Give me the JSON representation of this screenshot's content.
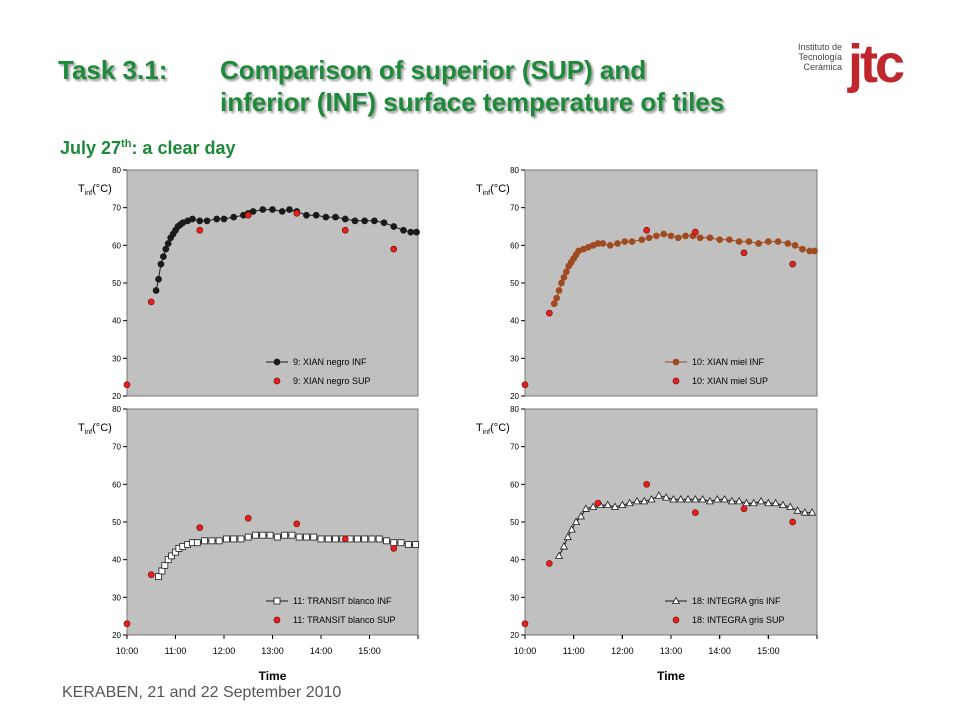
{
  "header": {
    "task_label": "Task 3.1:",
    "title_line1": "Comparison of superior (SUP) and",
    "title_line2": "inferior (INF) surface temperature of tiles",
    "subtitle_prefix": "July 27",
    "subtitle_sup": "th",
    "subtitle_suffix": ": a clear day"
  },
  "logo": {
    "line1": "Instituto de",
    "line2": "Tecnología Cerámica",
    "mark": "jtc"
  },
  "footer": {
    "text": "KERABEN, 21 and 22 September 2010"
  },
  "colors": {
    "title": "#1d8a3a",
    "plot_bg": "#c0c0c0",
    "sup_marker": "#e8201c",
    "logo": "#c0272d"
  },
  "chart_data": [
    {
      "type": "scatter",
      "ylabel": "T",
      "ylabel_sub": "inf",
      "ylabel_unit": "(°C)",
      "xlabel": "",
      "ylim": [
        20,
        80
      ],
      "yticks": [
        "20",
        "30",
        "40",
        "50",
        "60",
        "70",
        "80"
      ],
      "xticks": [],
      "marker": "circle",
      "inf_fill": "#1a1a1a",
      "inf_line": "#1a1a1a",
      "series": [
        {
          "name": "9: XIAN negro INF",
          "kind": "inf",
          "x": [
            10.6,
            10.65,
            10.7,
            10.75,
            10.8,
            10.85,
            10.9,
            10.95,
            11.0,
            11.05,
            11.1,
            11.15,
            11.25,
            11.35,
            11.5,
            11.65,
            11.85,
            12.0,
            12.2,
            12.4,
            12.5,
            12.6,
            12.8,
            13.0,
            13.2,
            13.35,
            13.5,
            13.7,
            13.9,
            14.1,
            14.3,
            14.5,
            14.7,
            14.9,
            15.1,
            15.3,
            15.5,
            15.7,
            15.85,
            15.97
          ],
          "y": [
            48,
            51,
            55,
            57,
            59,
            60.5,
            62,
            63,
            64,
            65,
            65.5,
            66,
            66.5,
            67,
            66.5,
            66.5,
            67,
            67,
            67.5,
            68,
            68.5,
            69,
            69.5,
            69.5,
            69,
            69.5,
            69,
            68,
            68,
            67.5,
            67.5,
            67,
            66.5,
            66.5,
            66.5,
            66,
            65,
            64,
            63.5,
            63.5
          ]
        },
        {
          "name": "9: XIAN negro SUP",
          "kind": "sup",
          "x": [
            10.0,
            10.5,
            11.5,
            12.5,
            13.5,
            14.5,
            15.5
          ],
          "y": [
            23,
            45,
            64,
            68,
            68.5,
            64,
            59
          ]
        }
      ]
    },
    {
      "type": "scatter",
      "ylabel": "T",
      "ylabel_sub": "inf",
      "ylabel_unit": "(°C)",
      "xlabel": "",
      "ylim": [
        20,
        80
      ],
      "yticks": [
        "20",
        "30",
        "40",
        "50",
        "60",
        "70",
        "80"
      ],
      "xticks": [],
      "marker": "circle",
      "inf_fill": "#a04a20",
      "inf_line": "#a04a20",
      "series": [
        {
          "name": "10: XIAN miel INF",
          "kind": "inf",
          "x": [
            10.6,
            10.65,
            10.7,
            10.75,
            10.8,
            10.85,
            10.9,
            10.95,
            11.0,
            11.05,
            11.1,
            11.2,
            11.3,
            11.4,
            11.5,
            11.6,
            11.75,
            11.9,
            12.05,
            12.2,
            12.4,
            12.55,
            12.7,
            12.85,
            13.0,
            13.15,
            13.3,
            13.45,
            13.6,
            13.8,
            14.0,
            14.2,
            14.4,
            14.6,
            14.8,
            15.0,
            15.2,
            15.4,
            15.55,
            15.7,
            15.85,
            15.95
          ],
          "y": [
            44.5,
            46,
            48,
            50,
            51.5,
            53,
            54.5,
            55.5,
            56.5,
            57.5,
            58.5,
            59,
            59.5,
            60,
            60.5,
            60.5,
            60,
            60.5,
            61,
            61,
            61.5,
            62,
            62.5,
            63,
            62.5,
            62,
            62.5,
            62.5,
            62,
            62,
            61.5,
            61.5,
            61,
            61,
            60.5,
            61,
            61,
            60.5,
            60,
            59,
            58.5,
            58.5
          ]
        },
        {
          "name": "10: XIAN miel SUP",
          "kind": "sup",
          "x": [
            10.0,
            10.5,
            12.5,
            13.5,
            14.5,
            15.5
          ],
          "y": [
            23,
            42,
            64,
            63.5,
            58,
            55
          ]
        }
      ]
    },
    {
      "type": "scatter",
      "ylabel": "T",
      "ylabel_sub": "inf",
      "ylabel_unit": "(°C)",
      "xlabel": "Time",
      "ylim": [
        20,
        80
      ],
      "yticks": [
        "20",
        "30",
        "40",
        "50",
        "60",
        "70",
        "80"
      ],
      "xticks": [
        "10:00",
        "11:00",
        "12:00",
        "13:00",
        "14:00",
        "15:00"
      ],
      "marker": "square",
      "inf_fill": "#ffffff",
      "inf_line": "#1a1a1a",
      "series": [
        {
          "name": "11: TRANSIT blanco INF",
          "kind": "inf",
          "x": [
            10.65,
            10.72,
            10.78,
            10.85,
            10.92,
            11.0,
            11.07,
            11.15,
            11.25,
            11.35,
            11.45,
            11.6,
            11.75,
            11.9,
            12.05,
            12.2,
            12.35,
            12.5,
            12.65,
            12.8,
            12.95,
            13.1,
            13.25,
            13.4,
            13.55,
            13.7,
            13.85,
            14.0,
            14.15,
            14.3,
            14.45,
            14.6,
            14.75,
            14.9,
            15.05,
            15.2,
            15.35,
            15.5,
            15.65,
            15.8,
            15.95
          ],
          "y": [
            35.5,
            37,
            38.5,
            40,
            41,
            42,
            43,
            43.5,
            44,
            44.5,
            44.5,
            45,
            45,
            45,
            45.5,
            45.5,
            45.5,
            46,
            46.5,
            46.5,
            46.5,
            46,
            46.5,
            46.5,
            46,
            46,
            46,
            45.5,
            45.5,
            45.5,
            45.5,
            45.5,
            45.5,
            45.5,
            45.5,
            45.5,
            45,
            44.5,
            44.5,
            44,
            44
          ]
        },
        {
          "name": "11: TRANSIT blanco SUP",
          "kind": "sup",
          "x": [
            10.0,
            10.5,
            11.5,
            12.5,
            13.5,
            14.5,
            15.5
          ],
          "y": [
            23,
            36,
            48.5,
            51,
            49.5,
            45.5,
            43
          ]
        }
      ]
    },
    {
      "type": "scatter",
      "ylabel": "T",
      "ylabel_sub": "inf",
      "ylabel_unit": "(°C)",
      "xlabel": "Time",
      "ylim": [
        20,
        80
      ],
      "yticks": [
        "20",
        "30",
        "40",
        "50",
        "60",
        "70",
        "80"
      ],
      "xticks": [
        "10:00",
        "11:00",
        "12:00",
        "13:00",
        "14:00",
        "15:00"
      ],
      "marker": "triangle",
      "inf_fill": "#ffffff",
      "inf_line": "#1a1a1a",
      "series": [
        {
          "name": "18: INTEGRA gris INF",
          "kind": "inf",
          "x": [
            10.7,
            10.8,
            10.88,
            10.96,
            11.05,
            11.15,
            11.25,
            11.4,
            11.55,
            11.7,
            11.85,
            12.0,
            12.15,
            12.3,
            12.45,
            12.6,
            12.75,
            12.9,
            13.05,
            13.2,
            13.35,
            13.5,
            13.65,
            13.8,
            13.95,
            14.1,
            14.25,
            14.4,
            14.55,
            14.7,
            14.85,
            15.0,
            15.15,
            15.3,
            15.45,
            15.6,
            15.75,
            15.9
          ],
          "y": [
            41,
            43.5,
            46,
            48,
            50,
            51.5,
            53.5,
            54,
            54.5,
            54.5,
            54,
            54.5,
            55,
            55.5,
            55.5,
            56,
            57,
            56.5,
            56,
            56,
            56,
            56,
            56,
            55.5,
            56,
            56,
            55.5,
            55.5,
            55,
            55,
            55.5,
            55,
            55,
            54.5,
            54,
            53,
            52.5,
            52.5
          ]
        },
        {
          "name": "18: INTEGRA gris SUP",
          "kind": "sup",
          "x": [
            10.0,
            10.5,
            11.5,
            12.5,
            13.5,
            14.5,
            15.5
          ],
          "y": [
            23,
            39,
            55,
            60,
            52.5,
            53.5,
            50
          ]
        }
      ]
    }
  ]
}
